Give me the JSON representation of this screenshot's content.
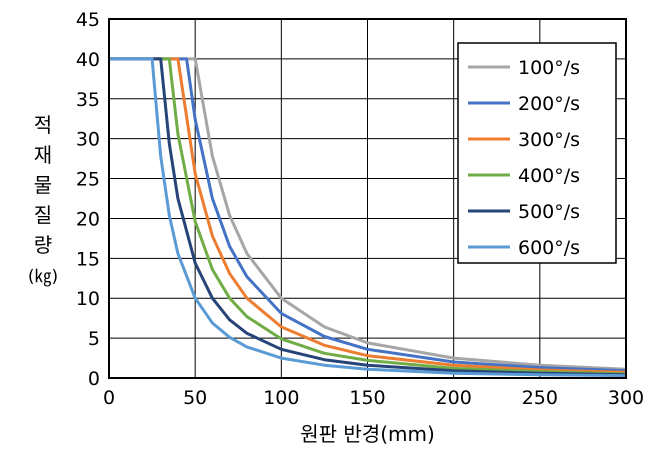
{
  "chart_data": {
    "type": "line",
    "xlabel": "원판 반경(mm)",
    "ylabel": "적재물 질량 (㎏)",
    "ylabel_lines": [
      "적",
      "재",
      "물",
      "질",
      "량",
      "(㎏)"
    ],
    "xlim": [
      0,
      300
    ],
    "ylim": [
      0,
      45
    ],
    "x_ticks": [
      "0",
      "50",
      "100",
      "150",
      "200",
      "250",
      "300"
    ],
    "y_ticks": [
      "0",
      "5",
      "10",
      "15",
      "20",
      "25",
      "30",
      "35",
      "40",
      "45"
    ],
    "grid": true,
    "legend_position": "top-right",
    "series": [
      {
        "name": "100°/s",
        "color": "#a6a6a6",
        "x": [
          0,
          50,
          60,
          70,
          80,
          100,
          125,
          150,
          200,
          250,
          300
        ],
        "y": [
          40,
          40,
          27.8,
          20.4,
          15.6,
          10.0,
          6.4,
          4.4,
          2.5,
          1.6,
          1.1
        ]
      },
      {
        "name": "200°/s",
        "color": "#4472c4",
        "x": [
          0,
          45,
          50,
          60,
          70,
          80,
          100,
          125,
          150,
          200,
          250,
          300
        ],
        "y": [
          40,
          40,
          32.4,
          22.5,
          16.5,
          12.7,
          8.1,
          5.2,
          3.6,
          2.0,
          1.3,
          0.9
        ]
      },
      {
        "name": "300°/s",
        "color": "#ed7d31",
        "x": [
          0,
          40,
          50,
          60,
          70,
          80,
          100,
          125,
          150,
          200,
          250,
          300
        ],
        "y": [
          40,
          40,
          25.6,
          17.8,
          13.1,
          10.0,
          6.4,
          4.1,
          2.8,
          1.6,
          1.0,
          0.7
        ]
      },
      {
        "name": "400°/s",
        "color": "#70ad47",
        "x": [
          0,
          35,
          40,
          50,
          60,
          70,
          80,
          100,
          125,
          150,
          200,
          250,
          300
        ],
        "y": [
          40,
          40,
          30.6,
          19.6,
          13.6,
          10.0,
          7.7,
          4.9,
          3.1,
          2.2,
          1.2,
          0.8,
          0.5
        ]
      },
      {
        "name": "500°/s",
        "color": "#264478",
        "x": [
          0,
          30,
          35,
          40,
          50,
          60,
          70,
          80,
          100,
          125,
          150,
          200,
          250,
          300
        ],
        "y": [
          40,
          40,
          29.4,
          22.5,
          14.4,
          10.0,
          7.3,
          5.6,
          3.6,
          2.3,
          1.6,
          0.9,
          0.6,
          0.4
        ]
      },
      {
        "name": "600°/s",
        "color": "#5b9bd5",
        "x": [
          0,
          25,
          30,
          35,
          40,
          50,
          60,
          70,
          80,
          100,
          125,
          150,
          200,
          250,
          300
        ],
        "y": [
          40,
          40,
          27.8,
          20.4,
          15.6,
          10.0,
          6.9,
          5.1,
          3.9,
          2.5,
          1.6,
          1.1,
          0.6,
          0.4,
          0.3
        ]
      }
    ]
  }
}
